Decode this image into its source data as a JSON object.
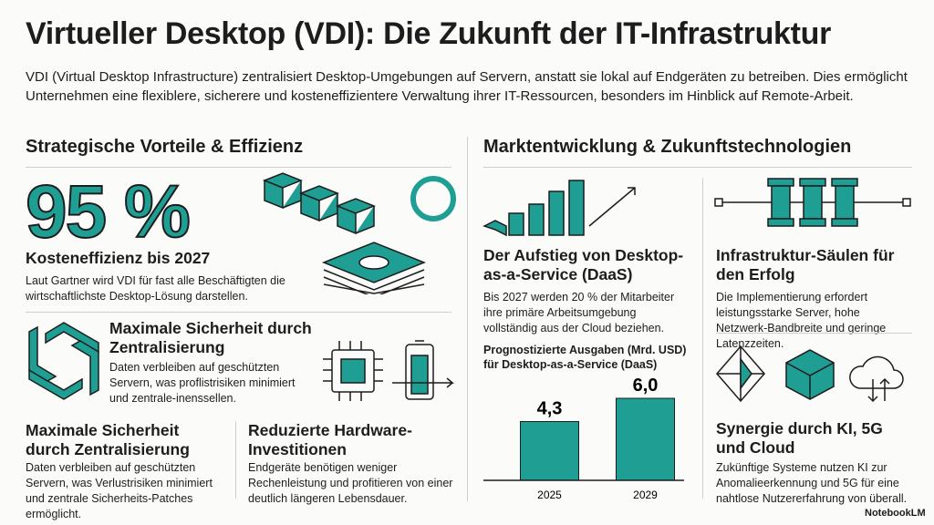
{
  "header": {
    "title": "Virtueller Desktop (VDI): Die Zukunft der IT-Infrastruktur",
    "intro": "VDI (Virtual Desktop Infrastructure) zentralisiert Desktop-Umgebungen auf Servern, anstatt sie lokal auf Endgeräten zu betreiben. Dies ermöglicht Unternehmen eine flexiblere, sicherere und kosteneffizientere Verwaltung ihrer IT-Ressourcen, besonders im Hinblick auf Remote-Arbeit."
  },
  "left": {
    "heading": "Strategische Vorteile & Effizienz",
    "stat": "95 %",
    "stat_title": "Kosteneffizienz bis 2027",
    "stat_text": "Laut Gartner wird VDI für fast alle Beschäftigten die wirtschaftlichste Desktop-Lösung darstellen.",
    "security_top": {
      "title": "Maximale Sicherheit durch Zentralisierung",
      "text": "Daten verbleiben auf geschützten Servern, was proflistrisiken minimiert und zentrale-inenssellen."
    },
    "security": {
      "title": "Maximale Sicherheit durch Zentralisierung",
      "text": "Daten verbleiben auf geschützten Servern, was Verlustrisiken minimiert und zentrale Sicherheits-Patches ermöglicht."
    },
    "hardware": {
      "title": "Reduzierte Hardware-Investitionen",
      "text": "Endgeräte benötigen weniger Rechenleistung und profitieren von einer deutlich längeren Lebensdauer."
    }
  },
  "right": {
    "heading": "Marktentwicklung & Zukunftstechnologien",
    "daas": {
      "title": "Der Aufstieg von Desktop-as-a-Service (DaaS)",
      "text": "Bis 2027 werden 20 % der Mitarbeiter ihre primäre Arbeitsumgebung vollständig aus der Cloud beziehen."
    },
    "pillars": {
      "title": "Infrastruktur-Säulen für den Erfolg",
      "text": "Die Implementierung erfordert leistungsstarke Server, hohe Netzwerk-Bandbreite und geringe Latenzzeiten."
    },
    "synergy": {
      "title": "Synergie durch KI, 5G und Cloud",
      "text": "Zukünftige Systeme nutzen KI zur Anomalieerkennung und 5G für eine nahtlose Nutzererfahrung von überall."
    }
  },
  "chart_data": {
    "type": "bar",
    "title": "Prognostizierte Ausgaben (Mrd. USD) für Desktop-as-a-Service (DaaS)",
    "categories": [
      "2025",
      "2029"
    ],
    "values": [
      4.3,
      6.0
    ],
    "value_labels": [
      "4,3",
      "6,0"
    ],
    "color": "#1f9e94"
  },
  "footer": {
    "brand": "NotebookLM"
  }
}
